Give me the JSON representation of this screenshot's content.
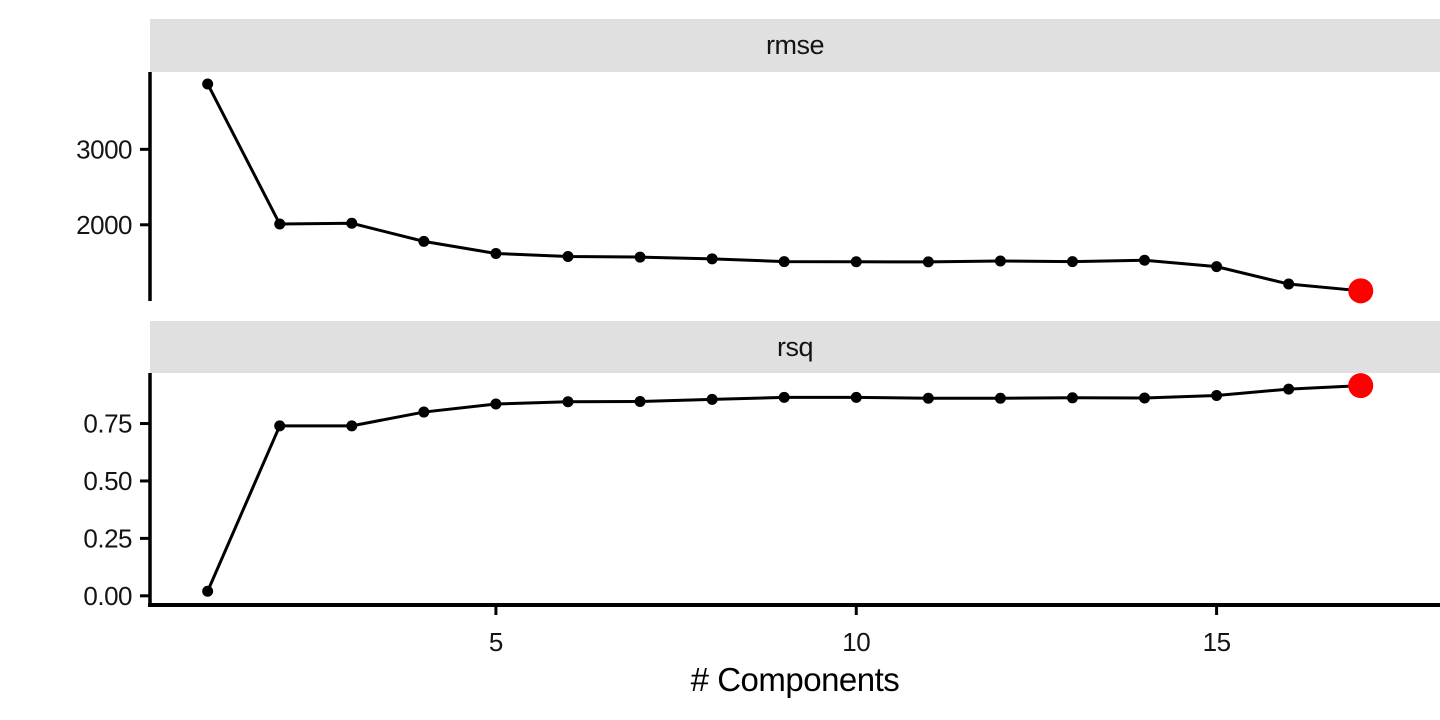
{
  "chart_data": {
    "type": "line",
    "title": "",
    "xlabel": "# Components",
    "legend": "none",
    "grid": false,
    "x": [
      1,
      2,
      3,
      4,
      5,
      6,
      7,
      8,
      9,
      10,
      11,
      12,
      13,
      14,
      15,
      16,
      17
    ],
    "xlim": [
      0.2,
      18.1
    ],
    "x_ticks": [
      {
        "value": 5,
        "label": "5"
      },
      {
        "value": 10,
        "label": "10"
      },
      {
        "value": 15,
        "label": "15"
      }
    ],
    "facets": [
      {
        "name": "rmse",
        "ylim": [
          990,
          4025
        ],
        "y_ticks": [
          {
            "value": 3000,
            "label": "3000"
          },
          {
            "value": 2000,
            "label": "2000"
          }
        ],
        "values": [
          3866,
          2010,
          2020,
          1780,
          1620,
          1580,
          1572,
          1549,
          1512,
          1510,
          1508,
          1520,
          1512,
          1530,
          1445,
          1215,
          1125
        ]
      },
      {
        "name": "rsq",
        "ylim": [
          -0.04,
          0.97
        ],
        "y_ticks": [
          {
            "value": 0.75,
            "label": "0.75"
          },
          {
            "value": 0.5,
            "label": "0.50"
          },
          {
            "value": 0.25,
            "label": "0.25"
          },
          {
            "value": 0.0,
            "label": "0.00"
          }
        ],
        "values": [
          0.02,
          0.74,
          0.74,
          0.8,
          0.835,
          0.845,
          0.846,
          0.855,
          0.864,
          0.864,
          0.86,
          0.86,
          0.862,
          0.861,
          0.872,
          0.9,
          0.915
        ]
      }
    ],
    "highlight": {
      "x": 17,
      "color": "#ff0000",
      "radius": 12.5
    },
    "style": {
      "line_color": "#000000",
      "point_color": "#000000",
      "point_radius": 5.5,
      "strip_fill": "#e0e0e0",
      "axis_color": "#000000",
      "tick_label_color": "#141414",
      "tick_label_size": 26
    }
  }
}
